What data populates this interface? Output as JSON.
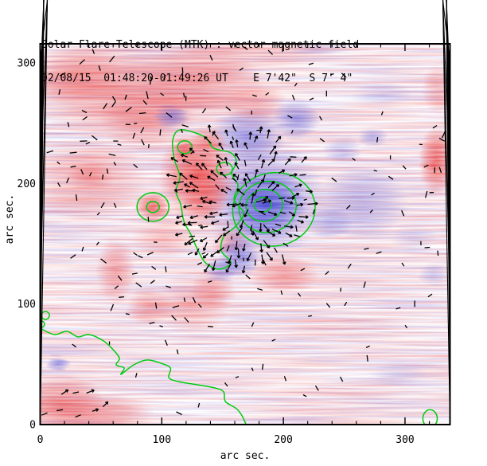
{
  "chart_data": {
    "type": "heatmap",
    "title": "Solar Flare Telescope (MTK) : vector magnetic field",
    "subtitle": "02/08/15  01:48:20-01:49:26 UT    E 7'42\"  S 7' 4\"",
    "xlabel": "arc sec.",
    "ylabel": "arc sec.",
    "xlim": [
      0,
      337
    ],
    "ylim": [
      0,
      316
    ],
    "xticks": [
      "0",
      "100",
      "200",
      "300"
    ],
    "yticks": [
      "0",
      "100",
      "200",
      "300"
    ],
    "minor_tick_step": 20,
    "major_tick_step": 100,
    "colors": {
      "positive_polarity": "#e83c3c",
      "negative_polarity": "#4646d2",
      "contour": "#00cc11",
      "vectors": "#000000",
      "frame": "#000000",
      "background": "#ffffff"
    },
    "polarity_regions": [
      {
        "polarity": "positive",
        "x": 65.2,
        "y": 276.5,
        "rx": 75.3,
        "ry": 41.0,
        "intensity": 0.5
      },
      {
        "polarity": "positive",
        "x": 29.1,
        "y": 289.7,
        "rx": 39.3,
        "ry": 25.1,
        "intensity": 0.45
      },
      {
        "polarity": "positive",
        "x": 130.6,
        "y": 283.1,
        "rx": 52.4,
        "ry": 31.7,
        "intensity": 0.5
      },
      {
        "polarity": "positive",
        "x": 88.1,
        "y": 253.3,
        "rx": 39.3,
        "ry": 26.5,
        "intensity": 0.4
      },
      {
        "polarity": "positive",
        "x": 176.5,
        "y": 266.5,
        "rx": 26.2,
        "ry": 19.8,
        "intensity": 0.4
      },
      {
        "polarity": "positive",
        "x": 39.0,
        "y": 203.7,
        "rx": 49.1,
        "ry": 36.4,
        "intensity": 0.4
      },
      {
        "polarity": "positive",
        "x": 42.2,
        "y": 205.7,
        "rx": 19.6,
        "ry": 13.2,
        "intensity": 0.35
      },
      {
        "polarity": "positive",
        "x": 128.7,
        "y": 207.0,
        "rx": 31.4,
        "ry": 38.4,
        "intensity": 0.85
      },
      {
        "polarity": "positive",
        "x": 135.9,
        "y": 190.5,
        "rx": 19.6,
        "ry": 23.1,
        "intensity": 0.6
      },
      {
        "polarity": "positive",
        "x": 92.7,
        "y": 180.6,
        "rx": 14.4,
        "ry": 13.2,
        "intensity": 0.8
      },
      {
        "polarity": "positive",
        "x": 118.9,
        "y": 228.8,
        "rx": 9.8,
        "ry": 8.6,
        "intensity": 0.8
      },
      {
        "polarity": "positive",
        "x": 138.5,
        "y": 234.8,
        "rx": 15.7,
        "ry": 11.9,
        "intensity": 0.6
      },
      {
        "polarity": "positive",
        "x": 156.8,
        "y": 150.8,
        "rx": 16.4,
        "ry": 11.9,
        "intensity": 0.4
      },
      {
        "polarity": "positive",
        "x": 200.0,
        "y": 124.3,
        "rx": 29.5,
        "ry": 16.5,
        "intensity": 0.5
      },
      {
        "polarity": "positive",
        "x": 61.9,
        "y": 127.6,
        "rx": 15.7,
        "ry": 27.8,
        "intensity": 0.45
      },
      {
        "polarity": "positive",
        "x": 90.0,
        "y": 97.9,
        "rx": 19.6,
        "ry": 15.9,
        "intensity": 0.45
      },
      {
        "polarity": "positive",
        "x": 124.1,
        "y": 99.9,
        "rx": 31.4,
        "ry": 26.5,
        "intensity": 0.35
      },
      {
        "polarity": "positive",
        "x": 142.4,
        "y": 111.1,
        "rx": 19.6,
        "ry": 16.5,
        "intensity": 0.45
      },
      {
        "polarity": "positive",
        "x": 16.0,
        "y": 17.2,
        "rx": 38.0,
        "ry": 23.8,
        "intensity": 0.65
      },
      {
        "polarity": "positive",
        "x": 52.1,
        "y": 8.6,
        "rx": 42.6,
        "ry": 17.2,
        "intensity": 0.45
      },
      {
        "polarity": "positive",
        "x": 325.8,
        "y": 218.9,
        "rx": 14.4,
        "ry": 29.1,
        "intensity": 0.85
      },
      {
        "polarity": "positive",
        "x": 327.1,
        "y": 278.4,
        "rx": 13.1,
        "ry": 21.2,
        "intensity": 0.35
      },
      {
        "polarity": "positive",
        "x": 163.4,
        "y": 309.5,
        "rx": 85.1,
        "ry": 13.2,
        "intensity": 0.3
      },
      {
        "polarity": "positive",
        "x": 101.2,
        "y": 154.1,
        "rx": 26.2,
        "ry": 16.5,
        "intensity": 0.3
      },
      {
        "polarity": "negative",
        "x": 183.0,
        "y": 187.2,
        "rx": 52.4,
        "ry": 49.6,
        "intensity": 0.5
      },
      {
        "polarity": "negative",
        "x": 185.7,
        "y": 181.9,
        "rx": 34.1,
        "ry": 31.7,
        "intensity": 0.9
      },
      {
        "polarity": "negative",
        "x": 169.9,
        "y": 238.8,
        "rx": 31.4,
        "ry": 23.8,
        "intensity": 0.55
      },
      {
        "polarity": "negative",
        "x": 210.5,
        "y": 253.3,
        "rx": 19.6,
        "ry": 15.9,
        "intensity": 0.55
      },
      {
        "polarity": "negative",
        "x": 107.7,
        "y": 255.3,
        "rx": 14.4,
        "ry": 9.9,
        "intensity": 0.6
      },
      {
        "polarity": "negative",
        "x": 264.9,
        "y": 183.9,
        "rx": 38.0,
        "ry": 31.7,
        "intensity": 0.35
      },
      {
        "polarity": "negative",
        "x": 273.4,
        "y": 238.8,
        "rx": 13.1,
        "ry": 8.6,
        "intensity": 0.35
      },
      {
        "polarity": "negative",
        "x": 163.4,
        "y": 139.6,
        "rx": 17.0,
        "ry": 18.5,
        "intensity": 0.6
      },
      {
        "polarity": "negative",
        "x": 149.0,
        "y": 129.0,
        "rx": 14.4,
        "ry": 10.6,
        "intensity": 0.5
      },
      {
        "polarity": "negative",
        "x": 14.7,
        "y": 50.3,
        "rx": 9.8,
        "ry": 6.6,
        "intensity": 0.55
      },
      {
        "polarity": "negative",
        "x": 323.8,
        "y": 124.3,
        "rx": 13.1,
        "ry": 9.3,
        "intensity": 0.25
      },
      {
        "polarity": "negative",
        "x": 248.5,
        "y": 226.9,
        "rx": 16.4,
        "ry": 11.9,
        "intensity": 0.3
      },
      {
        "polarity": "negative",
        "x": 236.7,
        "y": 167.3,
        "rx": 19.6,
        "ry": 14.6,
        "intensity": 0.35
      },
      {
        "polarity": "negative",
        "x": 281.3,
        "y": 273.1,
        "rx": 26.2,
        "ry": 11.9,
        "intensity": 0.18
      },
      {
        "polarity": "negative",
        "x": 307.5,
        "y": 154.1,
        "rx": 19.6,
        "ry": 13.2,
        "intensity": 0.15
      },
      {
        "polarity": "negative",
        "x": 294.4,
        "y": 41.7,
        "rx": 22.9,
        "ry": 9.9,
        "intensity": 0.15
      },
      {
        "polarity": "negative",
        "x": 228.9,
        "y": 312.8,
        "rx": 26.0,
        "ry": 6.0,
        "intensity": 0.2
      }
    ],
    "contours": {
      "stroke_width": 1.5,
      "rings": [
        {
          "cx": 192.2,
          "cy": 178.6,
          "rx": 34.0,
          "ry": 30.4,
          "rot": -10
        },
        {
          "cx": 187.0,
          "cy": 180.6,
          "rx": 23.6,
          "ry": 21.2,
          "rot": -10
        },
        {
          "cx": 184.3,
          "cy": 181.9,
          "rx": 15.1,
          "ry": 13.2,
          "rot": -10
        },
        {
          "cx": 183.0,
          "cy": 182.5,
          "rx": 7.2,
          "ry": 6.0,
          "rot": -10
        },
        {
          "cx": 92.7,
          "cy": 180.6,
          "rx": 13.1,
          "ry": 11.9,
          "rot": 0
        },
        {
          "cx": 92.7,
          "cy": 180.6,
          "rx": 5.2,
          "ry": 4.6,
          "rot": 0
        },
        {
          "cx": 118.9,
          "cy": 230.2,
          "rx": 5.9,
          "ry": 5.3,
          "rot": 0
        },
        {
          "cx": 151.6,
          "cy": 212.3,
          "rx": 6.5,
          "ry": 5.3,
          "rot": 0
        },
        {
          "cx": 320.6,
          "cy": 5.0,
          "rx": 5.9,
          "ry": 7.3,
          "rot": 0
        },
        {
          "cx": 4.3,
          "cy": 90.6,
          "rx": 3.3,
          "ry": 3.3,
          "rot": 0
        },
        {
          "cx": 1.0,
          "cy": 83.3,
          "rx": 2.6,
          "ry": 2.6,
          "rot": 0
        }
      ],
      "paths": [
        {
          "name": "main-boundary",
          "closed": true,
          "points": [
            [
              115.6,
              244.7
            ],
            [
              135.2,
              238.8
            ],
            [
              142.4,
              229.5
            ],
            [
              156.8,
              225.5
            ],
            [
              161.4,
              217.6
            ],
            [
              157.5,
              208.3
            ],
            [
              162.7,
              198.4
            ],
            [
              159.5,
              186.5
            ],
            [
              167.3,
              175.3
            ],
            [
              160.1,
              164.0
            ],
            [
              150.9,
              156.1
            ],
            [
              149.0,
              144.2
            ],
            [
              156.8,
              134.3
            ],
            [
              147.0,
              129.0
            ],
            [
              135.9,
              134.3
            ],
            [
              129.3,
              145.5
            ],
            [
              124.1,
              157.4
            ],
            [
              118.2,
              168.7
            ],
            [
              115.6,
              182.5
            ],
            [
              111.6,
              193.8
            ],
            [
              114.9,
              205.7
            ],
            [
              110.3,
              220.2
            ],
            [
              109.0,
              236.1
            ]
          ]
        },
        {
          "name": "neutral-line",
          "closed": false,
          "points": [
            [
              0,
              80.0
            ],
            [
              11.5,
              74.7
            ],
            [
              21.9,
              77.4
            ],
            [
              31.1,
              72.8
            ],
            [
              40.3,
              74.7
            ],
            [
              52.1,
              69.4
            ],
            [
              60.6,
              61.5
            ],
            [
              65.2,
              54.9
            ],
            [
              62.5,
              49.6
            ],
            [
              69.1,
              47.0
            ],
            [
              66.5,
              41.7
            ],
            [
              76.9,
              49.6
            ],
            [
              88.1,
              53.6
            ],
            [
              99.2,
              50.9
            ],
            [
              107.1,
              47.0
            ],
            [
              105.8,
              39.0
            ],
            [
              113.6,
              35.7
            ],
            [
              128.7,
              33.1
            ],
            [
              143.7,
              30.4
            ],
            [
              150.9,
              27.1
            ],
            [
              152.3,
              19.2
            ],
            [
              161.4,
              13.2
            ],
            [
              166.0,
              7.3
            ],
            [
              169.3,
              0
            ]
          ]
        }
      ]
    },
    "vector_field": {
      "seed": 42,
      "clusters": [
        {
          "name": "quiet-background",
          "cx": 168.5,
          "cy": 158,
          "rx": 169,
          "ry": 158,
          "spacing": 17,
          "prob": 0.42,
          "len": [
            4,
            8
          ],
          "style": "segment"
        },
        {
          "name": "core-radial",
          "cx": 163,
          "cy": 187,
          "rx": 60,
          "ry": 64,
          "spacing": 8.5,
          "prob": 0.9,
          "len": [
            7,
            13
          ],
          "style": "arrow",
          "radial_from": [
            173,
            184
          ]
        },
        {
          "name": "upper-left-plage",
          "cx": 65,
          "cy": 266,
          "rx": 59,
          "ry": 46,
          "spacing": 14,
          "prob": 0.55,
          "len": [
            6,
            10
          ],
          "style": "segment"
        },
        {
          "name": "left-mid-plage",
          "cx": 39,
          "cy": 204,
          "rx": 46,
          "ry": 36,
          "spacing": 15,
          "prob": 0.5,
          "len": [
            5,
            9
          ],
          "style": "segment"
        },
        {
          "name": "lower-left-plage",
          "cx": 91,
          "cy": 114,
          "rx": 52,
          "ry": 40,
          "spacing": 14,
          "prob": 0.55,
          "len": [
            5,
            9
          ],
          "style": "segment"
        },
        {
          "name": "bottom-left-corner",
          "cx": 26,
          "cy": 15,
          "rx": 36,
          "ry": 14,
          "spacing": 11,
          "prob": 0.7,
          "len": [
            7,
            11
          ],
          "style": "arrow",
          "angle_bias": 25
        },
        {
          "name": "right-edge-spot",
          "cx": 324,
          "cy": 217,
          "rx": 16,
          "ry": 33,
          "spacing": 12,
          "prob": 0.65,
          "len": [
            6,
            10
          ],
          "style": "segment"
        }
      ]
    }
  }
}
